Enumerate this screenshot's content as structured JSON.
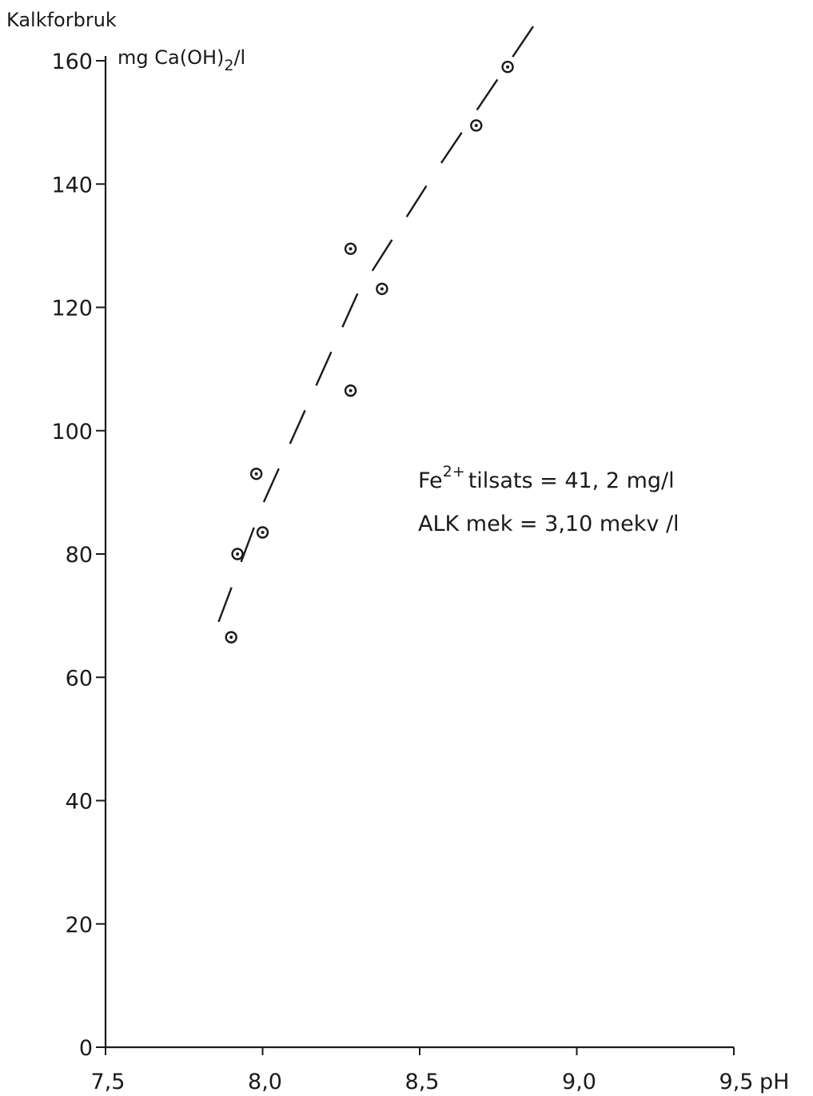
{
  "chart_data": {
    "type": "scatter",
    "title": "",
    "ylabel": "Kalkforbruk",
    "yunit": {
      "prefix": "mg Ca(OH)",
      "sub": "2",
      "suffix": "/l"
    },
    "xlabel": "pH",
    "xlim": [
      7.5,
      9.5
    ],
    "ylim": [
      0,
      160
    ],
    "xticks": [
      7.5,
      8.0,
      8.5,
      9.0,
      9.5
    ],
    "xtick_labels": [
      "7,5",
      "8,0",
      "8,5",
      "9,0",
      "9,5"
    ],
    "yticks": [
      0,
      20,
      40,
      60,
      80,
      100,
      120,
      140,
      160
    ],
    "ytick_labels": [
      "0",
      "20",
      "40",
      "60",
      "80",
      "100",
      "120",
      "140",
      "160"
    ],
    "grid": false,
    "series": [
      {
        "marker": "circle-dot",
        "points": [
          {
            "x": 7.9,
            "y": 66.5
          },
          {
            "x": 7.92,
            "y": 80
          },
          {
            "x": 7.98,
            "y": 93
          },
          {
            "x": 8.0,
            "y": 83.5
          },
          {
            "x": 8.28,
            "y": 129.5
          },
          {
            "x": 8.28,
            "y": 106.5
          },
          {
            "x": 8.38,
            "y": 123
          },
          {
            "x": 8.68,
            "y": 149.5
          },
          {
            "x": 8.78,
            "y": 159
          }
        ]
      }
    ],
    "fit_line": {
      "style": "dashed",
      "points": [
        {
          "x": 7.86,
          "y": 69
        },
        {
          "x": 8.0,
          "y": 88
        },
        {
          "x": 8.3,
          "y": 122
        },
        {
          "x": 8.55,
          "y": 142
        },
        {
          "x": 8.88,
          "y": 167
        }
      ]
    },
    "annotations": {
      "line1": {
        "prefix": "Fe",
        "sup": "2+",
        "rest": "tilsats = 41, 2 mg/l"
      },
      "line2": "ALK mek = 3,10 mekv /l"
    }
  }
}
